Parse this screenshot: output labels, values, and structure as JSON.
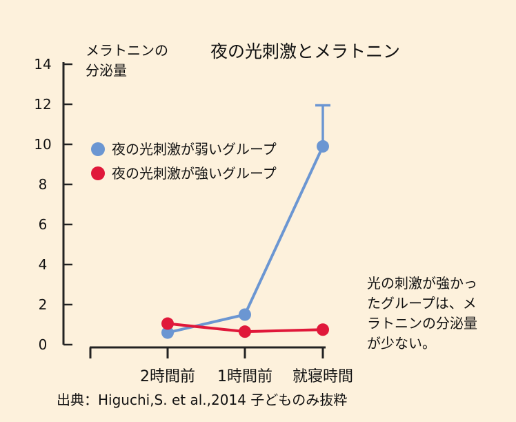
{
  "chart_data": {
    "type": "line",
    "title": "夜の光刺激とメラトニン",
    "ylabel_lines": [
      "メラトニンの",
      "分泌量"
    ],
    "categories": [
      "",
      "2時間前",
      "1時間前",
      "就寝時間"
    ],
    "yticks": [
      "0",
      "2",
      "4",
      "6",
      "8",
      "10",
      "12",
      "14"
    ],
    "ylim": [
      0,
      14
    ],
    "series": [
      {
        "name": "夜の光刺激が弱いグループ",
        "color": "#6b96d2",
        "points": [
          {
            "x": 1,
            "y": 0.6
          },
          {
            "x": 2,
            "y": 1.5
          },
          {
            "x": 3,
            "y": 9.9
          }
        ],
        "error_bar": {
          "x": 3,
          "upper": 11.95
        }
      },
      {
        "name": "夜の光刺激が強いグループ",
        "color": "#e0183a",
        "points": [
          {
            "x": 1,
            "y": 1.05
          },
          {
            "x": 2,
            "y": 0.65
          },
          {
            "x": 3,
            "y": 0.75
          }
        ]
      }
    ],
    "annotation_lines": [
      "光の刺激が強かっ",
      "たグループは、メ",
      "ラトニンの分泌量",
      "が少ない。"
    ],
    "source": "出典：Higuchi,S. et al.,2014 子どものみ抜粋"
  }
}
